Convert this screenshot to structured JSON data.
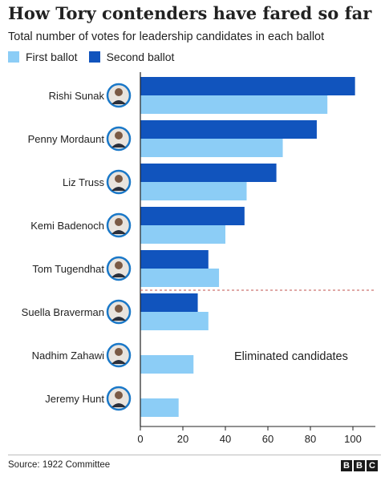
{
  "header": {
    "title": "How Tory contenders have fared so far",
    "subtitle": "Total number of votes for leadership candidates in each ballot"
  },
  "footer": {
    "source": "Source: 1922 Committee",
    "brand_letters": [
      "B",
      "B",
      "C"
    ]
  },
  "colors": {
    "first_ballot": "#8ccdf6",
    "second_ballot": "#1154bd",
    "avatar_ring": "#1a78c8",
    "divider": "#c0504d"
  },
  "chart_data": {
    "type": "bar",
    "orientation": "horizontal",
    "title": "How Tory contenders have fared so far",
    "subtitle": "Total number of votes for leadership candidates in each ballot",
    "categories": [
      "Rishi Sunak",
      "Penny Mordaunt",
      "Liz Truss",
      "Kemi Badenoch",
      "Tom Tugendhat",
      "Suella Braverman",
      "Nadhim Zahawi",
      "Jeremy Hunt"
    ],
    "series": [
      {
        "name": "First ballot",
        "values": [
          88,
          67,
          50,
          40,
          37,
          32,
          25,
          18
        ]
      },
      {
        "name": "Second ballot",
        "values": [
          101,
          83,
          64,
          49,
          32,
          27,
          null,
          null
        ]
      }
    ],
    "xlim": [
      0,
      110
    ],
    "xticks": [
      0,
      20,
      40,
      60,
      80,
      100
    ],
    "grid": false,
    "legend": "top-left",
    "annotation": "Eliminated candidates",
    "eliminated_from_index": 5
  }
}
